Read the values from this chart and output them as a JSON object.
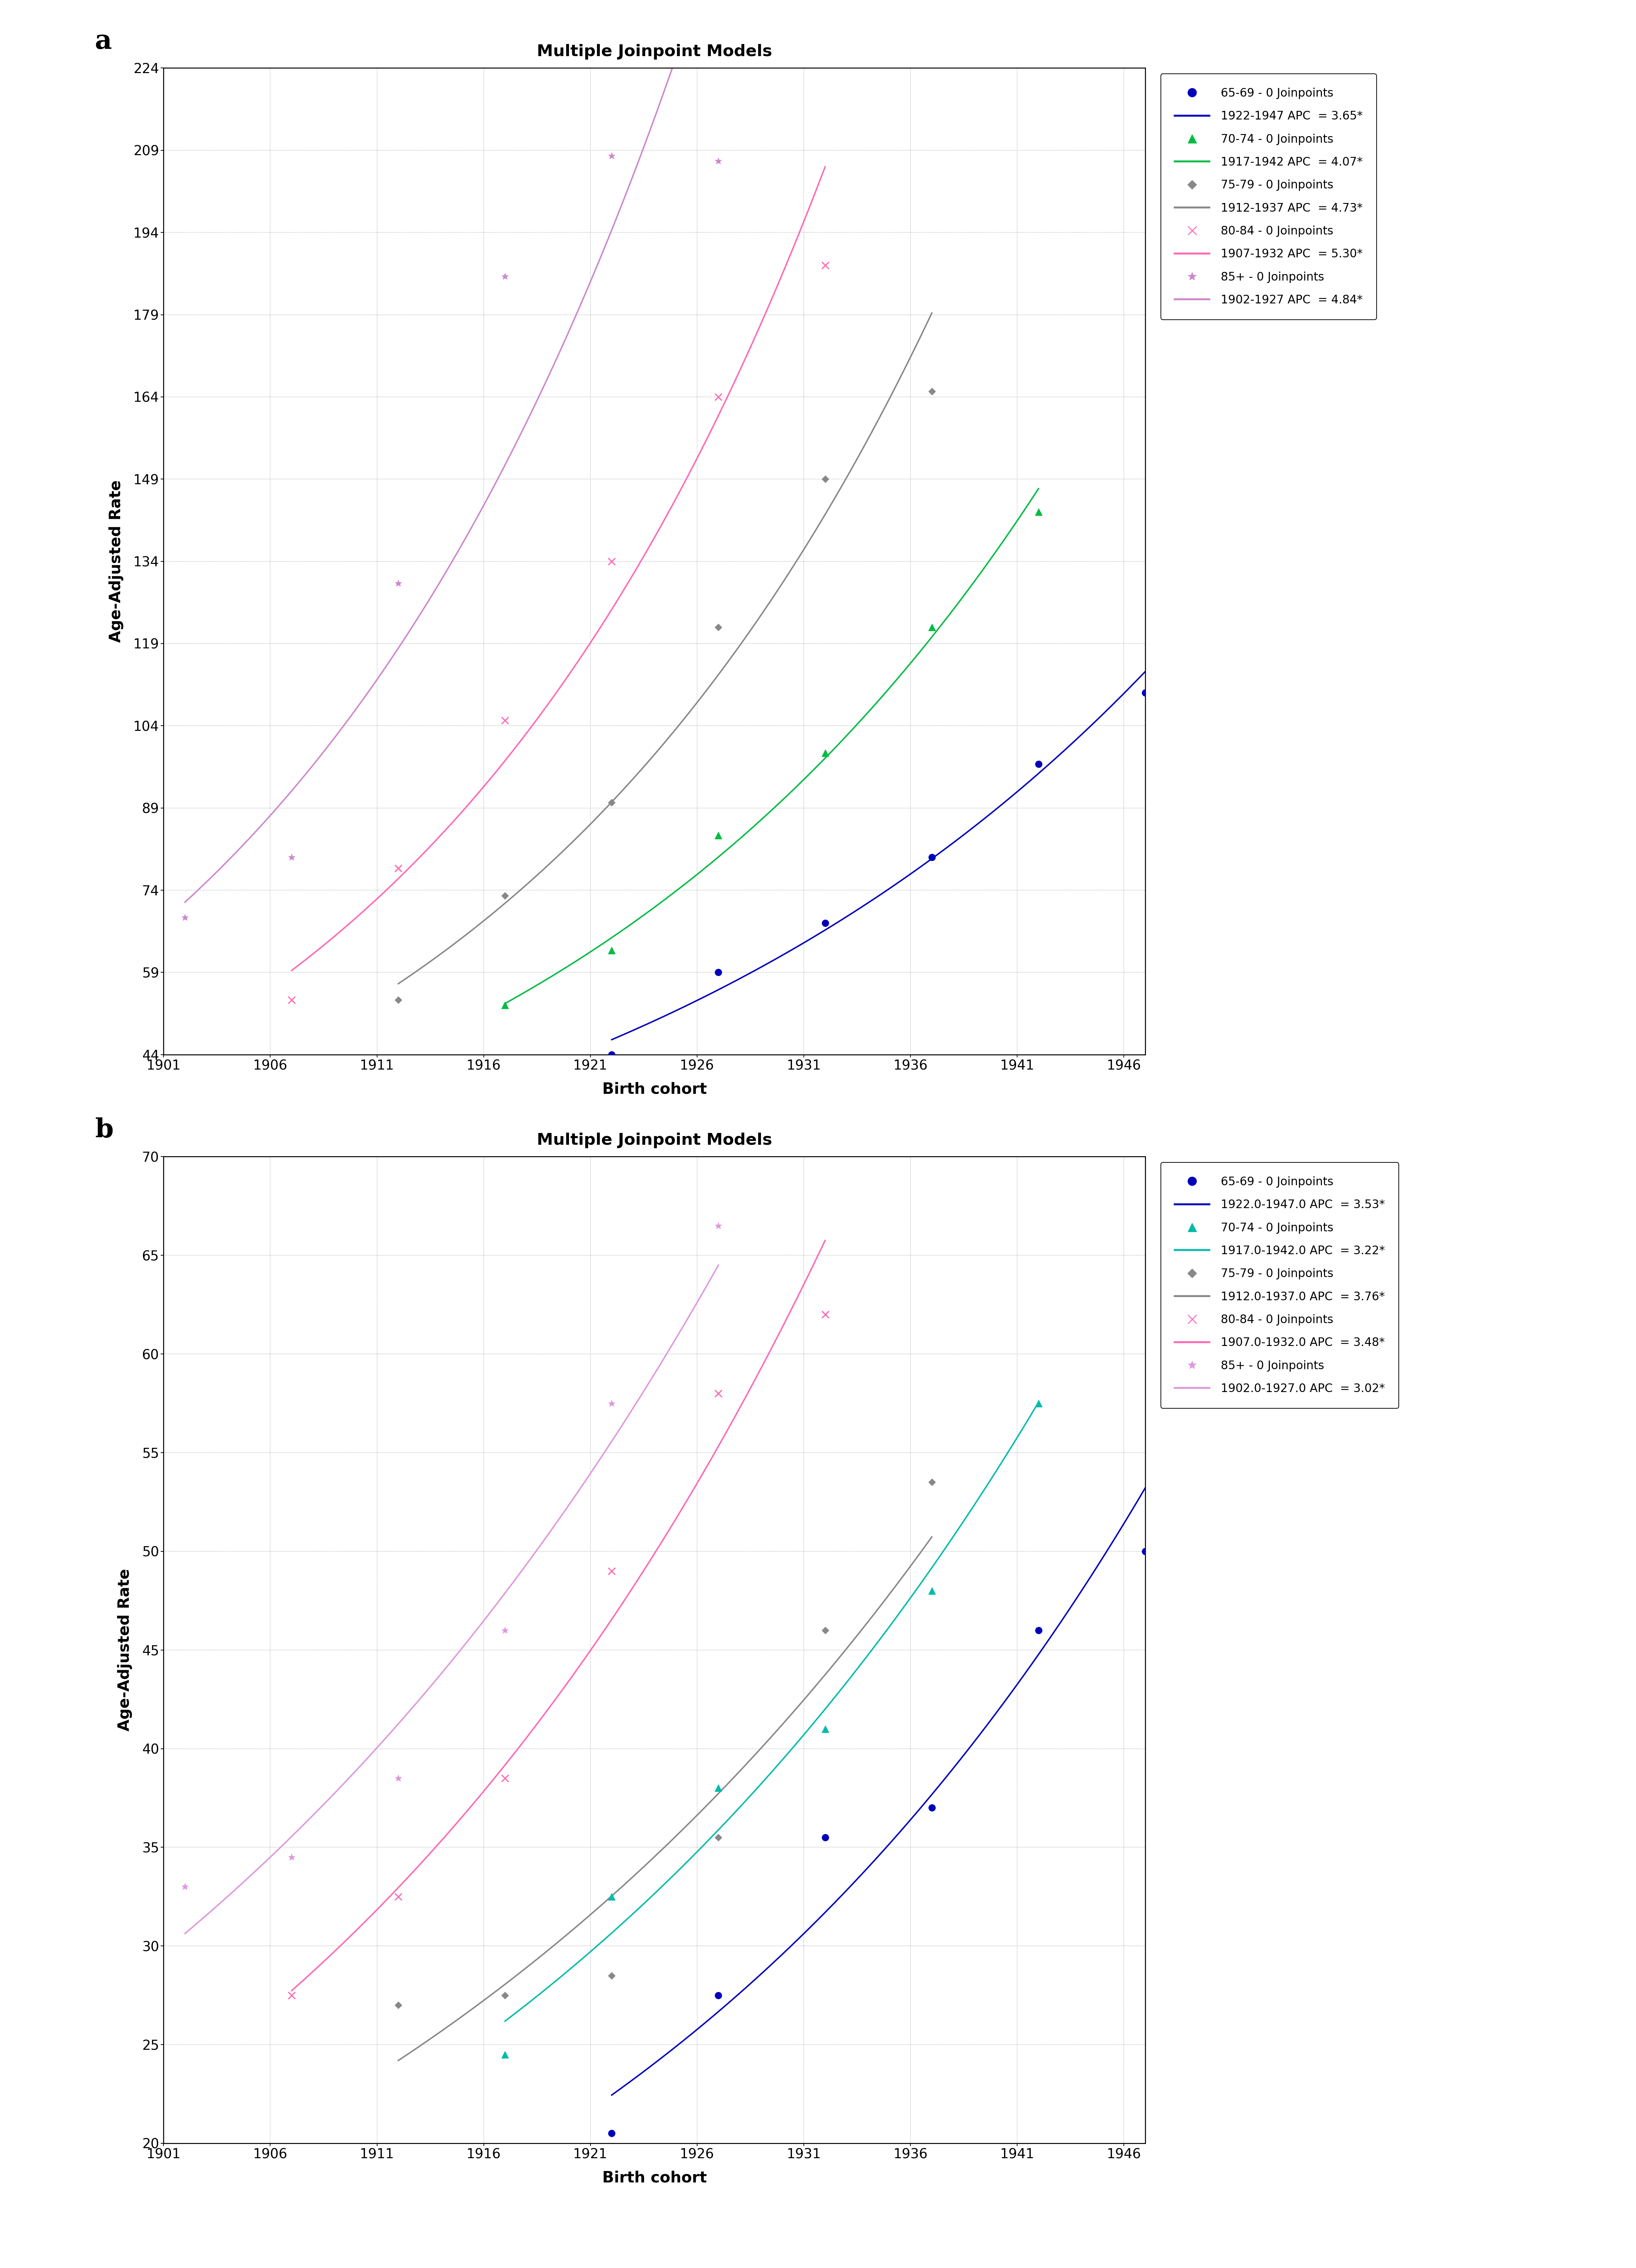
{
  "panel_a": {
    "title": "Multiple Joinpoint Models",
    "xlabel": "Birth cohort",
    "ylabel": "Age-Adjusted Rate",
    "xlim": [
      1901,
      1947
    ],
    "ylim": [
      44,
      224
    ],
    "yticks": [
      44,
      59,
      74,
      89,
      104,
      119,
      134,
      149,
      164,
      179,
      194,
      209,
      224
    ],
    "xticks": [
      1901,
      1906,
      1911,
      1916,
      1921,
      1926,
      1931,
      1936,
      1941,
      1946
    ],
    "series": [
      {
        "label_point": "65-69 - 0 Joinpoints",
        "label_line": "1922-1947 APC  = 3.65*",
        "color": "#0000BB",
        "marker": "o",
        "marker_size": 14,
        "points_x": [
          1922,
          1927,
          1932,
          1937,
          1942,
          1947
        ],
        "points_y": [
          44,
          59,
          68,
          80,
          97,
          110
        ],
        "line_x_start": 1922,
        "line_x_end": 1947,
        "apc": 3.65
      },
      {
        "label_point": "70-74 - 0 Joinpoints",
        "label_line": "1917-1942 APC  = 4.07*",
        "color": "#00BB44",
        "marker": "^",
        "marker_size": 14,
        "points_x": [
          1917,
          1922,
          1927,
          1932,
          1937,
          1942
        ],
        "points_y": [
          53,
          63,
          84,
          99,
          122,
          143
        ],
        "line_x_start": 1917,
        "line_x_end": 1942,
        "apc": 4.07
      },
      {
        "label_point": "75-79 - 0 Joinpoints",
        "label_line": "1912-1937 APC  = 4.73*",
        "color": "#888888",
        "marker": "D",
        "marker_size": 10,
        "points_x": [
          1912,
          1917,
          1922,
          1927,
          1932,
          1937
        ],
        "points_y": [
          54,
          73,
          90,
          122,
          149,
          165
        ],
        "line_x_start": 1912,
        "line_x_end": 1937,
        "apc": 4.73
      },
      {
        "label_point": "80-84 - 0 Joinpoints",
        "label_line": "1907-1932 APC  = 5.30*",
        "color": "#FF69B4",
        "marker": "x",
        "marker_size": 14,
        "points_x": [
          1907,
          1912,
          1917,
          1922,
          1927,
          1932
        ],
        "points_y": [
          54,
          78,
          105,
          134,
          164,
          188
        ],
        "line_x_start": 1907,
        "line_x_end": 1932,
        "apc": 5.3
      },
      {
        "label_point": "85+ - 0 Joinpoints",
        "label_line": "1902-1927 APC  = 4.84*",
        "color": "#CC88CC",
        "marker": "*",
        "marker_size": 14,
        "points_x": [
          1902,
          1907,
          1912,
          1917,
          1922,
          1927
        ],
        "points_y": [
          69,
          80,
          130,
          186,
          208,
          207
        ],
        "line_x_start": 1902,
        "line_x_end": 1927,
        "apc": 4.84
      }
    ]
  },
  "panel_b": {
    "title": "Multiple Joinpoint Models",
    "xlabel": "Birth cohort",
    "ylabel": "Age-Adjusted Rate",
    "xlim": [
      1901,
      1947
    ],
    "ylim": [
      20,
      70
    ],
    "yticks": [
      20,
      25,
      30,
      35,
      40,
      45,
      50,
      55,
      60,
      65,
      70
    ],
    "xticks": [
      1901,
      1906,
      1911,
      1916,
      1921,
      1926,
      1931,
      1936,
      1941,
      1946
    ],
    "series": [
      {
        "label_point": "65-69 - 0 Joinpoints",
        "label_line": "1922.0-1947.0 APC  = 3.53*",
        "color": "#0000BB",
        "marker": "o",
        "marker_size": 14,
        "points_x": [
          1922,
          1927,
          1932,
          1937,
          1942,
          1947
        ],
        "points_y": [
          20.5,
          27.5,
          35.5,
          37.0,
          46.0,
          50.0
        ],
        "line_x_start": 1922,
        "line_x_end": 1947,
        "apc": 3.53
      },
      {
        "label_point": "70-74 - 0 Joinpoints",
        "label_line": "1917.0-1942.0 APC  = 3.22*",
        "color": "#00BBAA",
        "marker": "^",
        "marker_size": 14,
        "points_x": [
          1917,
          1922,
          1927,
          1932,
          1937,
          1942
        ],
        "points_y": [
          24.5,
          32.5,
          38.0,
          41.0,
          48.0,
          57.5
        ],
        "line_x_start": 1917,
        "line_x_end": 1942,
        "apc": 3.22
      },
      {
        "label_point": "75-79 - 0 Joinpoints",
        "label_line": "1912.0-1937.0 APC  = 3.76*",
        "color": "#888888",
        "marker": "D",
        "marker_size": 10,
        "points_x": [
          1912,
          1917,
          1922,
          1927,
          1932,
          1937
        ],
        "points_y": [
          27.0,
          27.5,
          28.5,
          35.5,
          46.0,
          53.5
        ],
        "line_x_start": 1912,
        "line_x_end": 1937,
        "apc": 3.76
      },
      {
        "label_point": "80-84 - 0 Joinpoints",
        "label_line": "1907.0-1932.0 APC  = 3.48*",
        "color": "#FF69B4",
        "marker": "x",
        "marker_size": 14,
        "points_x": [
          1907,
          1912,
          1917,
          1922,
          1927,
          1932
        ],
        "points_y": [
          27.5,
          32.5,
          38.5,
          49.0,
          58.0,
          62.0
        ],
        "line_x_start": 1907,
        "line_x_end": 1932,
        "apc": 3.48
      },
      {
        "label_point": "85+ - 0 Joinpoints",
        "label_line": "1902.0-1927.0 APC  = 3.02*",
        "color": "#DD99DD",
        "marker": "*",
        "marker_size": 14,
        "points_x": [
          1902,
          1907,
          1912,
          1917,
          1922,
          1927
        ],
        "points_y": [
          33.0,
          34.5,
          38.5,
          46.0,
          57.5,
          66.5
        ],
        "line_x_start": 1902,
        "line_x_end": 1927,
        "apc": 3.02
      }
    ]
  }
}
